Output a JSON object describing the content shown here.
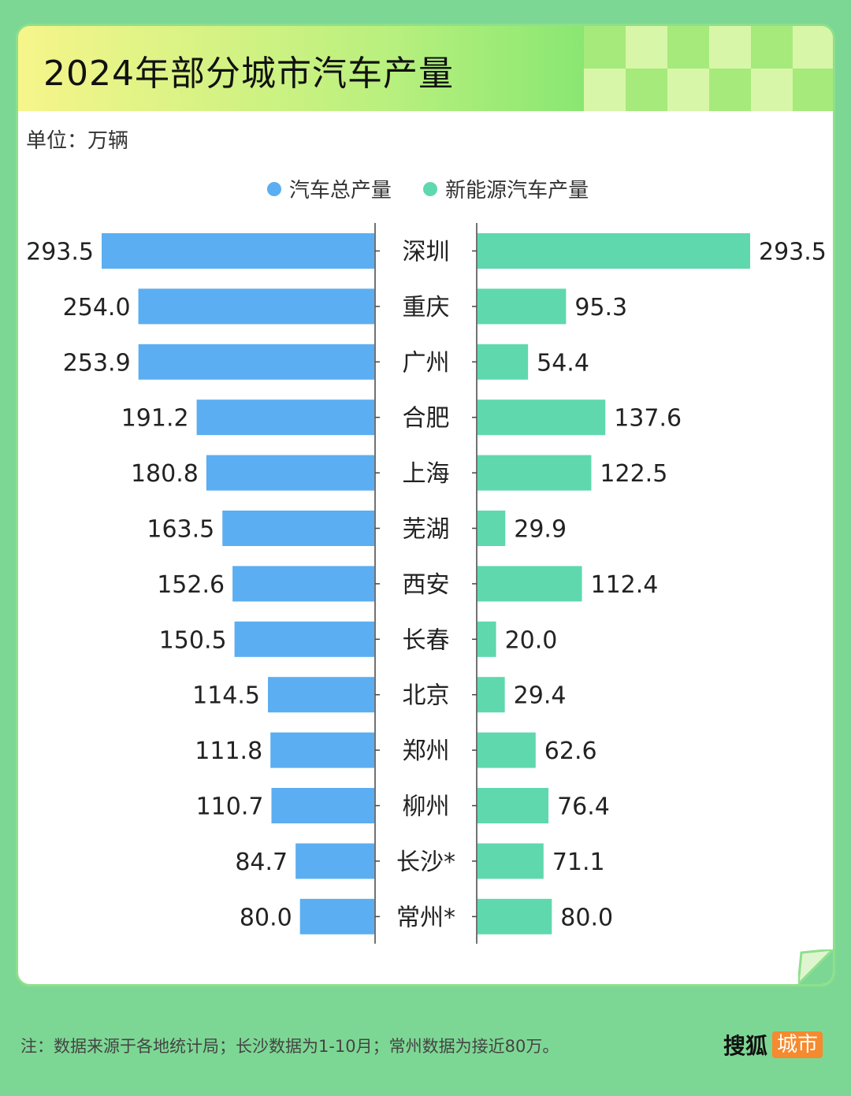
{
  "title": "2024年部分城市汽车产量",
  "unit_label": "单位：万辆",
  "legend": [
    {
      "label": "汽车总产量",
      "color": "#5baef1"
    },
    {
      "label": "新能源汽车产量",
      "color": "#5fd8ae"
    }
  ],
  "chart_data": {
    "type": "bar",
    "orientation": "horizontal-butterfly",
    "categories": [
      "深圳",
      "重庆",
      "广州",
      "合肥",
      "上海",
      "芜湖",
      "西安",
      "长春",
      "北京",
      "郑州",
      "柳州",
      "长沙*",
      "常州*"
    ],
    "series": [
      {
        "name": "汽车总产量",
        "color": "#5baef1",
        "values": [
          293.5,
          254.0,
          253.9,
          191.2,
          180.8,
          163.5,
          152.6,
          150.5,
          114.5,
          111.8,
          110.7,
          84.7,
          80.0
        ],
        "labels": [
          "293.5",
          "254.0",
          "253.9",
          "191.2",
          "180.8",
          "163.5",
          "152.6",
          "150.5",
          "114.5",
          "111.8",
          "110.7",
          "84.7",
          "80.0"
        ]
      },
      {
        "name": "新能源汽车产量",
        "color": "#5fd8ae",
        "values": [
          293.5,
          95.3,
          54.4,
          137.6,
          122.5,
          29.9,
          112.4,
          20.0,
          29.4,
          62.6,
          76.4,
          71.1,
          80.0
        ],
        "labels": [
          "293.5",
          "95.3",
          "54.4",
          "137.6",
          "122.5",
          "29.9",
          "112.4",
          "20.0",
          "29.4",
          "62.6",
          "76.4",
          "71.1",
          "80.0"
        ]
      }
    ]
  },
  "footer": {
    "note": "注：数据来源于各地统计局；长沙数据为1-10月；常州数据为接近80万。",
    "brand_name": "搜狐",
    "brand_tag": "城市"
  }
}
